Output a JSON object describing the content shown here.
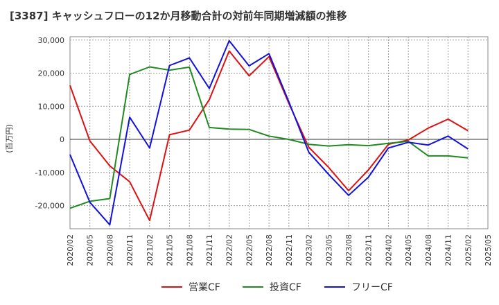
{
  "chart_data": {
    "type": "line",
    "title": "[3387]  キャッシュフローの12か月移動合計の対前年同期増減額の推移",
    "ylabel": "(百万円)",
    "xlabel": "",
    "ylim": [
      -27000,
      31000
    ],
    "yticks": [
      30000,
      20000,
      10000,
      0,
      -10000,
      -20000
    ],
    "ytick_labels": [
      "30,000",
      "20,000",
      "10,000",
      "0",
      "-10,000",
      "-20,000"
    ],
    "x": [
      "2020/02",
      "2020/05",
      "2020/08",
      "2020/11",
      "2021/02",
      "2021/05",
      "2021/08",
      "2021/11",
      "2022/02",
      "2022/05",
      "2022/08",
      "2022/11",
      "2023/02",
      "2023/05",
      "2023/08",
      "2023/11",
      "2024/02",
      "2024/05",
      "2024/08",
      "2024/11",
      "2025/02",
      "2025/05"
    ],
    "grid": true,
    "legend_position": "bottom",
    "series": [
      {
        "name": "営業CF",
        "color": "#dd1111",
        "values": [
          16300,
          -500,
          -8000,
          -12800,
          -24500,
          1400,
          2800,
          12000,
          26700,
          19200,
          25000,
          10800,
          -2400,
          -8500,
          -15500,
          -9200,
          -1500,
          -200,
          3400,
          6100,
          2600,
          null
        ]
      },
      {
        "name": "投資CF",
        "color": "#228822",
        "values": [
          -20800,
          -18700,
          -17900,
          19600,
          21900,
          20900,
          21800,
          3600,
          3100,
          3000,
          1000,
          0,
          -1500,
          -2000,
          -1600,
          -1900,
          -1200,
          -600,
          -5000,
          -5000,
          -5600,
          null
        ]
      },
      {
        "name": "フリーCF",
        "color": "#1111dd",
        "values": [
          -4600,
          -19000,
          -25800,
          6700,
          -2600,
          22300,
          24600,
          15400,
          29800,
          22200,
          25900,
          11300,
          -3900,
          -10600,
          -16900,
          -11400,
          -2600,
          -900,
          -1700,
          1000,
          -2900,
          null
        ]
      }
    ]
  }
}
